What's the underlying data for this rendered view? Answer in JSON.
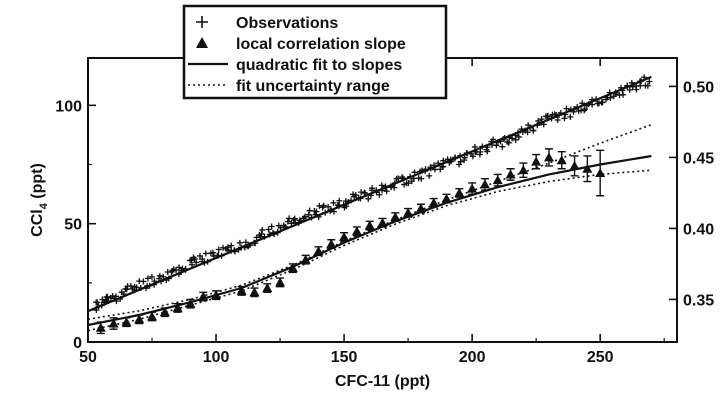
{
  "chart_data": {
    "type": "scatter",
    "title": "",
    "xlabel": "CFC-11 (ppt)",
    "ylabel_left": "CCl4 (ppt)",
    "ylabel_left_parts": {
      "main": "CCl",
      "sub": "4",
      "unit": " (ppt)"
    },
    "ylabel_right": "",
    "xlim": [
      50,
      280
    ],
    "ylim_left": [
      0,
      120
    ],
    "ylim_right": [
      0.32,
      0.52
    ],
    "x_ticks": [
      50,
      100,
      150,
      200,
      250
    ],
    "y_left_ticks": [
      0,
      50,
      100
    ],
    "y_right_ticks": [
      0.35,
      0.4,
      0.45,
      0.5
    ],
    "grid": false,
    "legend_position": "top-center",
    "legend": [
      {
        "label": "Observations",
        "marker": "plus"
      },
      {
        "label": "local correlation slope",
        "marker": "triangle"
      },
      {
        "label": "quadratic fit to slopes",
        "marker": "solid-line"
      },
      {
        "label": "fit uncertainty range",
        "marker": "dotted-line"
      }
    ],
    "series": [
      {
        "name": "Observations",
        "axis": "left",
        "style": "plus",
        "x": [
          53,
          60,
          70,
          80,
          90,
          100,
          110,
          120,
          130,
          140,
          150,
          160,
          170,
          180,
          190,
          200,
          210,
          220,
          230,
          240,
          250,
          260,
          270
        ],
        "y": [
          15,
          19,
          24,
          28,
          33,
          37,
          41,
          46,
          51,
          55,
          59,
          63,
          67,
          71,
          75,
          80,
          84,
          89,
          94,
          98,
          102,
          107,
          111
        ]
      },
      {
        "name": "local correlation slope",
        "axis": "right",
        "style": "triangle",
        "x": [
          55,
          60,
          65,
          70,
          75,
          80,
          85,
          90,
          95,
          100,
          110,
          115,
          120,
          125,
          130,
          135,
          140,
          145,
          150,
          155,
          160,
          165,
          170,
          175,
          180,
          185,
          190,
          195,
          200,
          205,
          210,
          215,
          220,
          225,
          230,
          235,
          240,
          245,
          250
        ],
        "y": [
          0.33,
          0.333,
          0.334,
          0.336,
          0.338,
          0.341,
          0.344,
          0.347,
          0.352,
          0.353,
          0.356,
          0.355,
          0.358,
          0.362,
          0.372,
          0.378,
          0.384,
          0.389,
          0.394,
          0.398,
          0.402,
          0.404,
          0.408,
          0.411,
          0.414,
          0.418,
          0.421,
          0.425,
          0.428,
          0.431,
          0.434,
          0.438,
          0.441,
          0.447,
          0.45,
          0.448,
          0.444,
          0.442,
          0.439
        ],
        "error": [
          0.004,
          0.004,
          0.003,
          0.003,
          0.003,
          0.003,
          0.003,
          0.003,
          0.003,
          0.003,
          0.003,
          0.003,
          0.003,
          0.003,
          0.003,
          0.003,
          0.003,
          0.003,
          0.003,
          0.003,
          0.003,
          0.003,
          0.003,
          0.003,
          0.003,
          0.003,
          0.003,
          0.003,
          0.004,
          0.004,
          0.004,
          0.004,
          0.005,
          0.005,
          0.006,
          0.006,
          0.007,
          0.009,
          0.016
        ]
      },
      {
        "name": "quadratic fit to slopes",
        "axis": "right",
        "style": "solid-line",
        "x": [
          50,
          70,
          90,
          110,
          130,
          150,
          170,
          190,
          210,
          230,
          250,
          270
        ],
        "y": [
          0.332,
          0.339,
          0.348,
          0.358,
          0.373,
          0.39,
          0.405,
          0.418,
          0.429,
          0.438,
          0.445,
          0.451
        ]
      },
      {
        "name": "fit uncertainty range (upper)",
        "axis": "right",
        "style": "dotted-line",
        "x": [
          50,
          70,
          90,
          110,
          130,
          150,
          170,
          190,
          210,
          230,
          250,
          270
        ],
        "y": [
          0.336,
          0.342,
          0.35,
          0.36,
          0.374,
          0.391,
          0.406,
          0.42,
          0.433,
          0.446,
          0.46,
          0.473
        ]
      },
      {
        "name": "fit uncertainty range (lower)",
        "axis": "right",
        "style": "dotted-line",
        "x": [
          50,
          70,
          90,
          110,
          130,
          150,
          170,
          190,
          210,
          230,
          250,
          270
        ],
        "y": [
          0.328,
          0.336,
          0.346,
          0.356,
          0.371,
          0.388,
          0.403,
          0.416,
          0.426,
          0.433,
          0.438,
          0.441
        ]
      },
      {
        "name": "Observations linear fit",
        "axis": "left",
        "style": "solid-line",
        "x": [
          50,
          270
        ],
        "y": [
          13,
          112
        ]
      }
    ]
  }
}
